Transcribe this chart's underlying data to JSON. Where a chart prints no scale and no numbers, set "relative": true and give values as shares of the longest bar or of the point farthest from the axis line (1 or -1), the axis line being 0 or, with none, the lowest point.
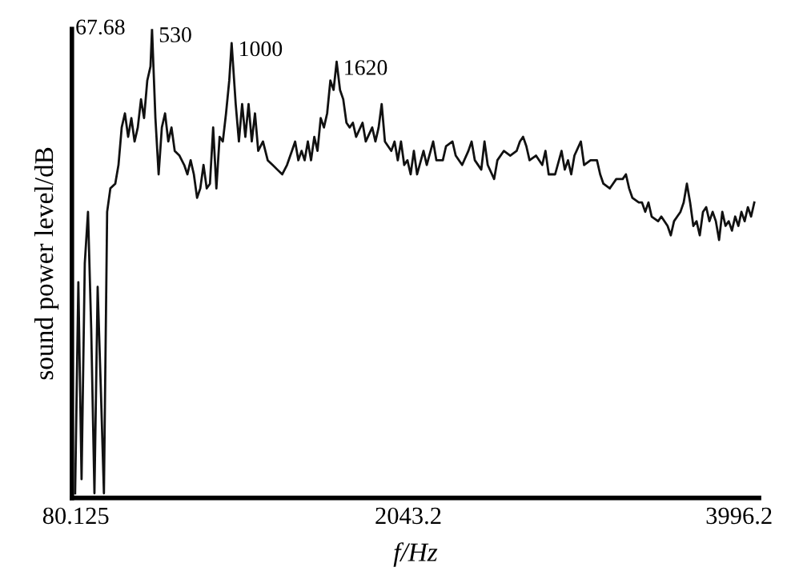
{
  "chart_data": {
    "type": "line",
    "relative": true,
    "xlabel": "f/Hz",
    "ylabel": "sound power level/dB",
    "xlim": [
      57,
      4114
    ],
    "xticks": [
      80.125,
      2043.2,
      3996.2
    ],
    "annotations": [
      "67.68",
      {
        "text": "530",
        "x": 530,
        "y": 1.0
      },
      {
        "text": "1000",
        "x": 1000,
        "y": 0.97
      },
      {
        "text": "1620",
        "x": 1620,
        "y": 0.93
      }
    ],
    "series": [
      {
        "color": "#111111",
        "x": [
          76,
          95,
          114,
          133,
          152,
          171,
          190,
          209,
          228,
          246,
          265,
          284,
          313,
          332,
          351,
          370,
          389,
          408,
          427,
          446,
          465,
          483,
          502,
          521,
          530,
          550,
          569,
          588,
          607,
          626,
          645,
          664,
          692,
          720,
          739,
          758,
          777,
          796,
          815,
          834,
          853,
          872,
          891,
          910,
          929,
          948,
          967,
          986,
          1000,
          1024,
          1043,
          1062,
          1081,
          1100,
          1119,
          1138,
          1157,
          1185,
          1213,
          1242,
          1270,
          1299,
          1327,
          1356,
          1375,
          1394,
          1413,
          1431,
          1450,
          1469,
          1488,
          1507,
          1526,
          1545,
          1564,
          1583,
          1602,
          1620,
          1640,
          1659,
          1678,
          1697,
          1716,
          1735,
          1773,
          1792,
          1830,
          1849,
          1868,
          1886,
          1905,
          1943,
          1962,
          1981,
          2000,
          2019,
          2038,
          2057,
          2076,
          2095,
          2133,
          2152,
          2190,
          2209,
          2247,
          2266,
          2304,
          2323,
          2361,
          2398,
          2417,
          2436,
          2474,
          2493,
          2512,
          2550,
          2569,
          2607,
          2645,
          2683,
          2702,
          2721,
          2740,
          2759,
          2797,
          2834,
          2853,
          2872,
          2910,
          2948,
          2967,
          2986,
          3005,
          3024,
          3062,
          3081,
          3119,
          3157,
          3176,
          3195,
          3233,
          3271,
          3309,
          3328,
          3347,
          3366,
          3404,
          3423,
          3442,
          3461,
          3480,
          3518,
          3537,
          3574,
          3593,
          3612,
          3631,
          3650,
          3669,
          3688,
          3707,
          3726,
          3745,
          3764,
          3783,
          3802,
          3821,
          3840,
          3859,
          3878,
          3897,
          3916,
          3935,
          3954,
          3973,
          3992,
          4010,
          4029,
          4048,
          4067,
          4086
        ],
        "values": [
          0.01,
          0.46,
          0.04,
          0.5,
          0.61,
          0.36,
          0.01,
          0.45,
          0.23,
          0.01,
          0.61,
          0.66,
          0.67,
          0.71,
          0.79,
          0.82,
          0.77,
          0.81,
          0.76,
          0.79,
          0.85,
          0.81,
          0.89,
          0.92,
          1.0,
          0.81,
          0.69,
          0.79,
          0.82,
          0.76,
          0.79,
          0.74,
          0.73,
          0.71,
          0.69,
          0.72,
          0.69,
          0.64,
          0.66,
          0.71,
          0.66,
          0.67,
          0.79,
          0.66,
          0.77,
          0.76,
          0.82,
          0.89,
          0.97,
          0.84,
          0.76,
          0.84,
          0.77,
          0.84,
          0.76,
          0.82,
          0.74,
          0.76,
          0.72,
          0.71,
          0.7,
          0.69,
          0.71,
          0.74,
          0.76,
          0.72,
          0.74,
          0.72,
          0.76,
          0.72,
          0.77,
          0.74,
          0.81,
          0.79,
          0.82,
          0.89,
          0.87,
          0.93,
          0.87,
          0.85,
          0.8,
          0.79,
          0.8,
          0.77,
          0.8,
          0.76,
          0.79,
          0.76,
          0.79,
          0.84,
          0.76,
          0.74,
          0.76,
          0.72,
          0.76,
          0.71,
          0.72,
          0.69,
          0.74,
          0.69,
          0.74,
          0.71,
          0.76,
          0.72,
          0.72,
          0.75,
          0.76,
          0.73,
          0.71,
          0.74,
          0.76,
          0.72,
          0.7,
          0.76,
          0.71,
          0.68,
          0.72,
          0.74,
          0.73,
          0.74,
          0.76,
          0.77,
          0.75,
          0.72,
          0.73,
          0.71,
          0.74,
          0.69,
          0.69,
          0.74,
          0.7,
          0.72,
          0.69,
          0.73,
          0.76,
          0.71,
          0.72,
          0.72,
          0.69,
          0.67,
          0.66,
          0.68,
          0.68,
          0.69,
          0.66,
          0.64,
          0.63,
          0.63,
          0.61,
          0.63,
          0.6,
          0.59,
          0.6,
          0.58,
          0.56,
          0.59,
          0.6,
          0.61,
          0.63,
          0.67,
          0.63,
          0.58,
          0.59,
          0.56,
          0.61,
          0.62,
          0.59,
          0.61,
          0.59,
          0.55,
          0.61,
          0.58,
          0.59,
          0.57,
          0.6,
          0.58,
          0.61,
          0.59,
          0.62,
          0.6,
          0.63
        ]
      }
    ]
  }
}
